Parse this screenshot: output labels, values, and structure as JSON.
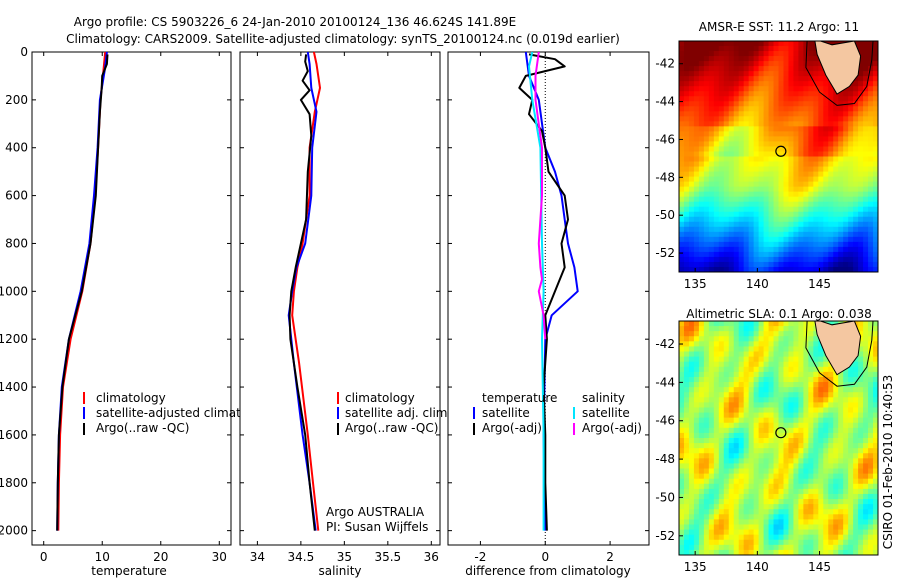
{
  "title_line1": "Argo profile: CS 5903226_6 24-Jan-2010 20100124_136 46.624S 141.89E",
  "title_line2": "Climatology: CARS2009. Satellite-adjusted climatology: synTS_20100124.nc (0.019d earlier)",
  "side_text": "CSIRO 01-Feb-2010 10:40:53",
  "float_info": [
    "Argo AUSTRALIA",
    "PI: Susan Wijffels"
  ],
  "colors": {
    "climatology": "#ff0000",
    "satellite": "#0000ff",
    "argo": "#000000",
    "sal_satellite": "#00e5ff",
    "sal_argo": "#ff00ff"
  },
  "chart_data": [
    {
      "type": "line",
      "xlabel": "temperature",
      "xticks": [
        0,
        10,
        20,
        30
      ],
      "yticks": [
        0,
        200,
        400,
        600,
        800,
        1000,
        1200,
        1400,
        1600,
        1800,
        2000
      ],
      "xlim": [
        -2,
        32
      ],
      "ylim": [
        0,
        2060
      ],
      "legend": [
        "climatology",
        "satellite-adjusted climatology",
        "Argo(..raw -QC)"
      ],
      "series": [
        {
          "name": "climatology",
          "color": "#ff0000",
          "depth": [
            0,
            80,
            200,
            400,
            600,
            800,
            1000,
            1200,
            1400,
            1600,
            1800,
            2000
          ],
          "values": [
            10.5,
            10.2,
            9.7,
            9.3,
            8.8,
            8.0,
            6.6,
            4.6,
            3.3,
            2.8,
            2.6,
            2.5
          ]
        },
        {
          "name": "satellite-adjusted climatology",
          "color": "#0000ff",
          "depth": [
            0,
            80,
            200,
            400,
            600,
            800,
            1000,
            1200,
            1400,
            1600,
            1800,
            2000
          ],
          "values": [
            10.8,
            10.4,
            9.6,
            9.2,
            8.6,
            7.8,
            6.3,
            4.3,
            3.1,
            2.6,
            2.4,
            2.3
          ]
        },
        {
          "name": "Argo(..raw -QC)",
          "color": "#000000",
          "depth": [
            10,
            50,
            100,
            150,
            250,
            400,
            600,
            800,
            1000,
            1200,
            1400,
            1600,
            1800,
            2000
          ],
          "values": [
            10.9,
            10.8,
            10.0,
            9.9,
            9.6,
            9.3,
            8.9,
            8.0,
            6.5,
            4.3,
            3.2,
            2.6,
            2.4,
            2.3
          ]
        }
      ]
    },
    {
      "type": "line",
      "xlabel": "salinity",
      "xticks": [
        34,
        34.5,
        35,
        35.5,
        36
      ],
      "xticklabels": [
        "34",
        "34.5",
        "35",
        "35.5",
        "36"
      ],
      "yticks": [
        0,
        200,
        400,
        600,
        800,
        1000,
        1200,
        1400,
        1600,
        1800,
        2000
      ],
      "xlim": [
        33.8,
        36.1
      ],
      "ylim": [
        0,
        2060
      ],
      "legend": [
        "climatology",
        "satellite adj. clim.",
        "Argo(..raw -QC)"
      ],
      "series": [
        {
          "name": "climatology",
          "color": "#ff0000",
          "depth": [
            0,
            50,
            150,
            250,
            400,
            600,
            800,
            900,
            1000,
            1100,
            1300,
            1600,
            1800,
            2000
          ],
          "values": [
            34.65,
            34.68,
            34.72,
            34.66,
            34.6,
            34.6,
            34.52,
            34.46,
            34.42,
            34.4,
            34.48,
            34.58,
            34.64,
            34.7
          ]
        },
        {
          "name": "satellite adj. clim.",
          "color": "#0000ff",
          "depth": [
            0,
            50,
            150,
            250,
            400,
            600,
            800,
            900,
            1000,
            1100,
            1300,
            1600,
            1800,
            2000
          ],
          "values": [
            34.58,
            34.6,
            34.62,
            34.68,
            34.63,
            34.62,
            34.55,
            34.45,
            34.4,
            34.36,
            34.42,
            34.52,
            34.6,
            34.67
          ]
        },
        {
          "name": "Argo(..raw -QC)",
          "color": "#000000",
          "depth": [
            10,
            40,
            80,
            120,
            160,
            200,
            260,
            350,
            500,
            700,
            800,
            900,
            1000,
            1100,
            1200,
            1400,
            1600,
            1800,
            2000
          ],
          "values": [
            34.56,
            34.55,
            34.58,
            34.52,
            34.6,
            34.5,
            34.6,
            34.62,
            34.58,
            34.56,
            34.5,
            34.44,
            34.39,
            34.37,
            34.38,
            34.46,
            34.55,
            34.6,
            34.66
          ]
        }
      ]
    },
    {
      "type": "line",
      "xlabel": "difference from climatology",
      "xticks": [
        -2,
        0,
        2
      ],
      "yticks": [
        0,
        200,
        400,
        600,
        800,
        1000,
        1200,
        1400,
        1600,
        1800,
        2000
      ],
      "xlim": [
        -3,
        3.2
      ],
      "ylim": [
        0,
        2060
      ],
      "legend": [
        "temperature",
        "satellite",
        "Argo(-adj)",
        "salinity",
        "satellite",
        "Argo(-adj)"
      ],
      "series": [
        {
          "name": "temperature satellite",
          "color": "#0000ff",
          "depth": [
            0,
            100,
            200,
            400,
            500,
            600,
            700,
            800,
            900,
            1000,
            1100,
            1200,
            1600,
            2000
          ],
          "values": [
            -0.6,
            -0.5,
            -0.2,
            0.0,
            0.3,
            0.5,
            0.6,
            0.7,
            0.9,
            1.0,
            0.2,
            0.0,
            -0.05,
            0.0
          ]
        },
        {
          "name": "temperature Argo(-adj)",
          "color": "#000000",
          "depth": [
            10,
            30,
            60,
            100,
            150,
            200,
            260,
            330,
            400,
            500,
            600,
            700,
            800,
            900,
            1000,
            1100,
            1200,
            1400,
            1600,
            1800,
            2000
          ],
          "values": [
            -0.5,
            0.3,
            0.6,
            -0.6,
            -0.8,
            -0.4,
            -0.5,
            -0.1,
            0.0,
            0.1,
            0.6,
            0.7,
            0.5,
            0.6,
            0.3,
            0.0,
            0.05,
            -0.05,
            0.0,
            0.0,
            0.05
          ]
        },
        {
          "name": "salinity satellite",
          "color": "#00e5ff",
          "depth": [
            0,
            60,
            200,
            400,
            800,
            1000,
            1200,
            1600,
            2000
          ],
          "values": [
            -0.4,
            -0.5,
            -0.4,
            -0.15,
            -0.1,
            -0.05,
            -0.1,
            -0.05,
            -0.05
          ]
        },
        {
          "name": "salinity Argo(-adj)",
          "color": "#ff00ff",
          "depth": [
            0,
            100,
            200,
            400,
            600,
            800,
            900,
            950,
            1000,
            1100,
            1200
          ],
          "values": [
            -0.2,
            -0.3,
            -0.3,
            -0.1,
            -0.1,
            -0.2,
            -0.15,
            -0.1,
            -0.2,
            -0.05,
            0.0
          ]
        }
      ]
    },
    {
      "type": "heatmap",
      "title": "AMSR-E SST: 11.2  Argo: 11",
      "xticks": [
        135,
        140,
        145
      ],
      "yticks": [
        -42,
        -44,
        -46,
        -48,
        -50,
        -52
      ],
      "xlim": [
        133.7,
        149.7
      ],
      "ylim": [
        -53,
        -40.8
      ],
      "argo_lon": 141.89,
      "argo_lat": -46.624
    },
    {
      "type": "heatmap",
      "title": "Altimetric SLA: 0.1  Argo: 0.038",
      "xticks": [
        135,
        140,
        145
      ],
      "yticks": [
        -42,
        -44,
        -46,
        -48,
        -50,
        -52
      ],
      "xlim": [
        133.7,
        149.7
      ],
      "ylim": [
        -53,
        -40.8
      ],
      "argo_lon": 141.89,
      "argo_lat": -46.624
    }
  ]
}
